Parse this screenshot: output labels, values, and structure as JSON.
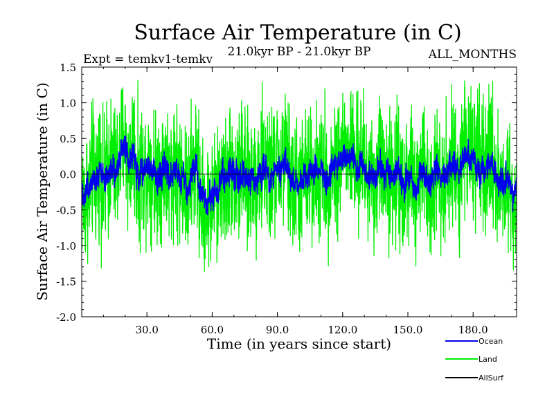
{
  "chart_data": {
    "type": "line",
    "title": "Surface Air Temperature (in C)",
    "subtitle": "21.0kyr BP - 21.0kyr BP",
    "experiment_label": "Expt = temkv1-temkv",
    "months_label": "ALL_MONTHS",
    "xlabel": "Time (in years since start)",
    "ylabel": "Surface Air Temperature (in C)",
    "xlim": [
      0,
      200
    ],
    "ylim": [
      -2.0,
      1.5
    ],
    "xticks": [
      30,
      60,
      90,
      120,
      150,
      180
    ],
    "xtick_labels": [
      "30.0",
      "60.0",
      "90.0",
      "120.0",
      "150.0",
      "180.0"
    ],
    "yticks": [
      -2.0,
      -1.5,
      -1.0,
      -0.5,
      0.0,
      0.5,
      1.0,
      1.5
    ],
    "ytick_labels": [
      "-2.0",
      "-1.5",
      "-1.0",
      "-0.5",
      "0.0",
      "0.5",
      "1.0",
      "1.5"
    ],
    "grid": false,
    "legend_position": "bottom-right",
    "samples_per_year": 12,
    "series": [
      {
        "name": "Land",
        "color": "#00ee00",
        "noise_amplitude": 0.45,
        "annual_anomaly": [
          -0.3,
          -0.4,
          -0.2,
          -0.3,
          0.0,
          0.1,
          -0.1,
          0.0,
          0.2,
          -0.1,
          -0.2,
          0.1,
          0.0,
          0.2,
          0.1,
          0.0,
          0.1,
          0.2,
          0.4,
          0.5,
          0.3,
          0.1,
          0.2,
          0.4,
          0.3,
          0.0,
          -0.1,
          0.1,
          0.0,
          0.1,
          0.1,
          0.2,
          0.0,
          0.1,
          -0.1,
          0.1,
          0.0,
          0.1,
          0.2,
          0.0,
          -0.1,
          0.0,
          0.2,
          0.1,
          0.0,
          -0.1,
          0.0,
          -0.2,
          -0.3,
          -0.3,
          0.0,
          0.1,
          0.2,
          -0.1,
          -0.3,
          -0.5,
          -0.4,
          -0.6,
          -0.3,
          -0.5,
          -0.4,
          -0.2,
          -0.4,
          -0.1,
          0.0,
          -0.2,
          -0.1,
          0.0,
          0.1,
          0.0,
          -0.1,
          0.0,
          -0.1,
          0.1,
          0.0,
          -0.1,
          -0.2,
          -0.1,
          0.0,
          -0.1,
          -0.1,
          0.1,
          0.0,
          0.2,
          0.1,
          0.0,
          -0.1,
          0.0,
          0.0,
          0.1,
          0.2,
          0.0,
          0.2,
          0.3,
          0.1,
          0.0,
          -0.1,
          -0.2,
          -0.1,
          -0.2,
          -0.2,
          -0.1,
          0.0,
          -0.1,
          0.0,
          0.1,
          0.0,
          0.1,
          0.0,
          0.0,
          0.1,
          0.0,
          -0.1,
          -0.1,
          0.0,
          0.1,
          0.2,
          0.1,
          0.2,
          0.3,
          0.4,
          0.3,
          0.2,
          0.3,
          0.4,
          0.2,
          0.0,
          0.1,
          0.3,
          0.2,
          0.0,
          -0.1,
          0.1,
          0.0,
          -0.1,
          0.0,
          0.1,
          0.2,
          0.1,
          0.0,
          0.1,
          0.0,
          -0.1,
          -0.2,
          0.0,
          0.1,
          0.0,
          -0.1,
          -0.2,
          0.0,
          -0.1,
          0.0,
          -0.2,
          -0.3,
          -0.2,
          0.0,
          0.1,
          0.0,
          -0.1,
          -0.2,
          -0.1,
          0.0,
          0.0,
          0.1,
          0.0,
          -0.1,
          0.1,
          0.0,
          0.0,
          0.1,
          0.2,
          0.1,
          0.1,
          0.0,
          0.2,
          0.3,
          0.5,
          0.4,
          0.3,
          0.2,
          0.3,
          0.1,
          0.2,
          0.0,
          0.1,
          0.0,
          0.1,
          0.2,
          0.3,
          0.2,
          0.0,
          -0.1,
          -0.2,
          -0.1,
          -0.2,
          0.0,
          -0.2,
          -0.3,
          -0.4,
          -0.3,
          -0.1,
          -0.3
        ]
      },
      {
        "name": "Ocean",
        "color": "#0000ee",
        "noise_amplitude": 0.09,
        "annual_anomaly": [
          -0.3,
          -0.3,
          -0.2,
          -0.2,
          -0.1,
          0.0,
          -0.1,
          0.0,
          0.1,
          0.0,
          -0.1,
          0.0,
          0.0,
          0.1,
          0.1,
          0.0,
          0.1,
          0.2,
          0.3,
          0.4,
          0.3,
          0.1,
          0.2,
          0.3,
          0.2,
          0.0,
          -0.1,
          0.1,
          0.0,
          0.1,
          0.1,
          0.1,
          0.0,
          0.1,
          -0.1,
          0.0,
          0.0,
          0.1,
          0.1,
          0.0,
          -0.1,
          0.0,
          0.1,
          0.1,
          0.0,
          -0.1,
          0.0,
          -0.1,
          -0.2,
          -0.2,
          0.0,
          0.1,
          0.1,
          -0.1,
          -0.2,
          -0.3,
          -0.3,
          -0.4,
          -0.3,
          -0.3,
          -0.3,
          -0.2,
          -0.3,
          -0.1,
          0.0,
          -0.1,
          -0.1,
          0.0,
          0.1,
          0.0,
          -0.1,
          0.0,
          -0.1,
          0.0,
          0.0,
          -0.1,
          -0.1,
          -0.1,
          0.0,
          -0.1,
          -0.1,
          0.0,
          0.0,
          0.1,
          0.1,
          0.0,
          -0.1,
          0.0,
          0.0,
          0.1,
          0.1,
          0.0,
          0.1,
          0.2,
          0.1,
          0.0,
          -0.1,
          -0.1,
          -0.1,
          -0.2,
          -0.1,
          -0.1,
          0.0,
          -0.1,
          0.0,
          0.1,
          0.0,
          0.1,
          0.0,
          0.0,
          0.1,
          0.0,
          -0.1,
          -0.1,
          0.0,
          0.1,
          0.1,
          0.1,
          0.2,
          0.2,
          0.3,
          0.2,
          0.2,
          0.2,
          0.3,
          0.2,
          0.0,
          0.1,
          0.2,
          0.1,
          0.0,
          -0.1,
          0.0,
          0.0,
          -0.1,
          0.0,
          0.1,
          0.1,
          0.1,
          0.0,
          0.1,
          0.0,
          -0.1,
          -0.1,
          0.0,
          0.1,
          0.0,
          -0.1,
          -0.2,
          0.0,
          -0.1,
          0.0,
          -0.2,
          -0.2,
          -0.2,
          0.0,
          0.0,
          0.0,
          -0.1,
          -0.1,
          -0.1,
          0.0,
          0.0,
          0.1,
          0.0,
          -0.1,
          0.0,
          0.0,
          0.0,
          0.1,
          0.1,
          0.1,
          0.1,
          0.0,
          0.1,
          0.2,
          0.3,
          0.3,
          0.2,
          0.2,
          0.2,
          0.1,
          0.1,
          0.0,
          0.1,
          0.0,
          0.1,
          0.1,
          0.2,
          0.1,
          0.0,
          -0.1,
          -0.1,
          -0.1,
          -0.2,
          0.0,
          -0.1,
          -0.2,
          -0.3,
          -0.2,
          -0.1,
          -0.2
        ]
      },
      {
        "name": "AllSurf",
        "color": "#000000",
        "noise_amplitude": 0.0,
        "annual_anomaly": []
      }
    ],
    "legend_order": [
      "Ocean",
      "Land",
      "AllSurf"
    ]
  }
}
